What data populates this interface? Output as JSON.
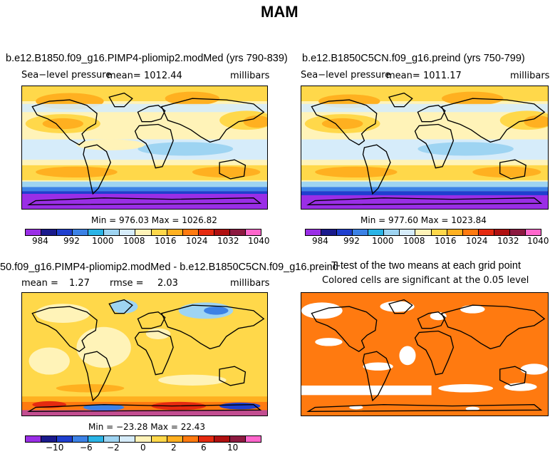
{
  "figure": {
    "title": "MAM",
    "units": "millibars"
  },
  "panels": {
    "p1": {
      "title": "b.e12.B1850.f09_g16.PIMP4-pliomip2.modMed (yrs 790-839)",
      "variable": "Sea−level pressure",
      "mean_label": "mean=",
      "mean_value": "1012.44",
      "units": "millibars",
      "minmax": "Min = 976.03 Max = 1026.82"
    },
    "p2": {
      "title": "b.e12.B1850C5CN.f09_g16.preind (yrs 750-799)",
      "variable": "Sea−level pressure",
      "mean_label": "mean=",
      "mean_value": "1011.17",
      "units": "millibars",
      "minmax": "Min = 977.60 Max = 1023.84"
    },
    "p3": {
      "title": "50.f09_g16.PIMP4-pliomip2.modMed - b.e12.B1850C5CN.f09_g16.preind",
      "mean_label": "mean =",
      "mean_value": "1.27",
      "rmse_label": "rmse =",
      "rmse_value": "2.03",
      "units": "millibars",
      "minmax": "Min = −23.28 Max =  22.43"
    },
    "p4": {
      "title": "T-test of the two means at each grid point",
      "subtitle": "Colored cells are significant at the 0.05 level"
    }
  },
  "colorbars": {
    "abs": {
      "colors": [
        "#9a2ee6",
        "#1a1a8c",
        "#1f3fcf",
        "#3c82e6",
        "#2ab4e6",
        "#9ed4f2",
        "#d6ecfa",
        "#fff3b8",
        "#ffd84a",
        "#ffb020",
        "#ff7a10",
        "#e52a10",
        "#b01010",
        "#8c1a40",
        "#ff66cc"
      ],
      "labels": [
        "984",
        "992",
        "1000",
        "1008",
        "1016",
        "1024",
        "1032",
        "1040"
      ]
    },
    "diff": {
      "colors": [
        "#9a2ee6",
        "#1a1a8c",
        "#1f3fcf",
        "#3c82e6",
        "#2ab4e6",
        "#9ed4f2",
        "#d6ecfa",
        "#fff3b8",
        "#ffd84a",
        "#ffb020",
        "#ff7a10",
        "#e52a10",
        "#b01010",
        "#8c1a40",
        "#ff66cc"
      ],
      "labels": [
        "−10",
        "−6",
        "−2",
        "0",
        "2",
        "6",
        "10"
      ]
    }
  },
  "chart_data": [
    {
      "type": "heatmap",
      "title": "b.e12.B1850.f09_g16.PIMP4-pliomip2.modMed (yrs 790-839)",
      "variable": "Sea-level pressure",
      "units": "millibars",
      "mean": 1012.44,
      "min": 976.03,
      "max": 1026.82,
      "levels": [
        984,
        992,
        1000,
        1008,
        1016,
        1024,
        1032,
        1040
      ]
    },
    {
      "type": "heatmap",
      "title": "b.e12.B1850C5CN.f09_g16.preind (yrs 750-799)",
      "variable": "Sea-level pressure",
      "units": "millibars",
      "mean": 1011.17,
      "min": 977.6,
      "max": 1023.84,
      "levels": [
        984,
        992,
        1000,
        1008,
        1016,
        1024,
        1032,
        1040
      ]
    },
    {
      "type": "heatmap",
      "title": "50.f09_g16.PIMP4-pliomip2.modMed - b.e12.B1850C5CN.f09_g16.preind",
      "units": "millibars",
      "mean": 1.27,
      "rmse": 2.03,
      "min": -23.28,
      "max": 22.43,
      "levels": [
        -10,
        -6,
        -2,
        0,
        2,
        6,
        10
      ]
    },
    {
      "type": "heatmap",
      "title": "T-test of the two means at each grid point",
      "subtitle": "Colored cells are significant at the 0.05 level",
      "significance_level": 0.05
    }
  ]
}
